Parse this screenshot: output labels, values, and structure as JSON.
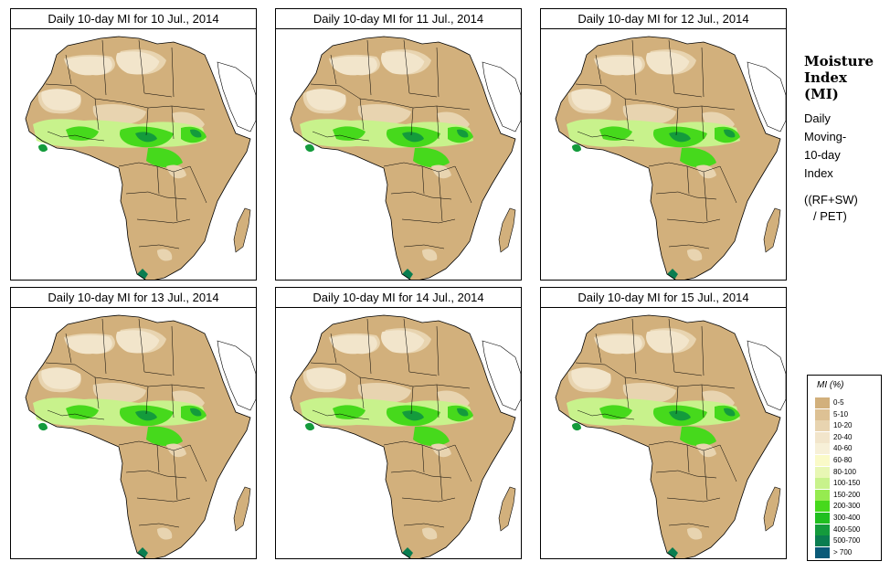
{
  "panels": [
    {
      "title": "Daily 10-day MI for  10 Jul., 2014"
    },
    {
      "title": "Daily 10-day MI for  11 Jul., 2014"
    },
    {
      "title": "Daily 10-day MI for  12 Jul., 2014"
    },
    {
      "title": "Daily 10-day MI for  13 Jul., 2014"
    },
    {
      "title": "Daily 10-day MI for  14 Jul., 2014"
    },
    {
      "title": "Daily 10-day MI for  15 Jul., 2014"
    }
  ],
  "side_info": {
    "heading_1": "Moisture",
    "heading_2": "Index",
    "heading_3": "(MI)",
    "desc_1": "Daily",
    "desc_2": "Moving-",
    "desc_3": "10-day",
    "desc_4": "Index",
    "formula_1": "((RF+SW)",
    "formula_2": "/ PET)"
  },
  "legend": {
    "title": "MI (%)",
    "items": [
      {
        "label": "0-5",
        "color": "#d2b07c"
      },
      {
        "label": "5-10",
        "color": "#ddc194"
      },
      {
        "label": "10-20",
        "color": "#e8d4b0"
      },
      {
        "label": "20-40",
        "color": "#f2e5cb"
      },
      {
        "label": "40-60",
        "color": "#f7f0d8"
      },
      {
        "label": "60-80",
        "color": "#fafac8"
      },
      {
        "label": "80-100",
        "color": "#e8f7b4"
      },
      {
        "label": "100-150",
        "color": "#c8f28c"
      },
      {
        "label": "150-200",
        "color": "#96eb50"
      },
      {
        "label": "200-300",
        "color": "#46d91c"
      },
      {
        "label": "300-400",
        "color": "#1fbf1f"
      },
      {
        "label": "400-500",
        "color": "#149b3c"
      },
      {
        "label": "500-700",
        "color": "#0a7d50"
      },
      {
        "label": "> 700",
        "color": "#0a5a78"
      }
    ]
  }
}
